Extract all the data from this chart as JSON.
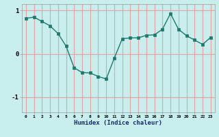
{
  "x": [
    0,
    1,
    2,
    3,
    4,
    5,
    6,
    7,
    8,
    9,
    10,
    11,
    12,
    13,
    14,
    15,
    16,
    17,
    18,
    19,
    20,
    21,
    22,
    23
  ],
  "y": [
    0.82,
    0.85,
    0.75,
    0.65,
    0.47,
    0.18,
    -0.32,
    -0.43,
    -0.44,
    -0.52,
    -0.58,
    -0.1,
    0.35,
    0.37,
    0.37,
    0.43,
    0.44,
    0.57,
    0.93,
    0.57,
    0.42,
    0.32,
    0.22,
    0.38
  ],
  "xlabel": "Humidex (Indice chaleur)",
  "bg_color": "#c8eeee",
  "line_color": "#1a7a6e",
  "marker_color": "#1a7a6e",
  "grid_color": "#e8a0a0",
  "yticks": [
    -1,
    0,
    1
  ],
  "xticks": [
    0,
    1,
    2,
    3,
    4,
    5,
    6,
    7,
    8,
    9,
    10,
    11,
    12,
    13,
    14,
    15,
    16,
    17,
    18,
    19,
    20,
    21,
    22,
    23
  ],
  "ylim": [
    -1.35,
    1.15
  ],
  "xlim": [
    -0.5,
    23.5
  ]
}
